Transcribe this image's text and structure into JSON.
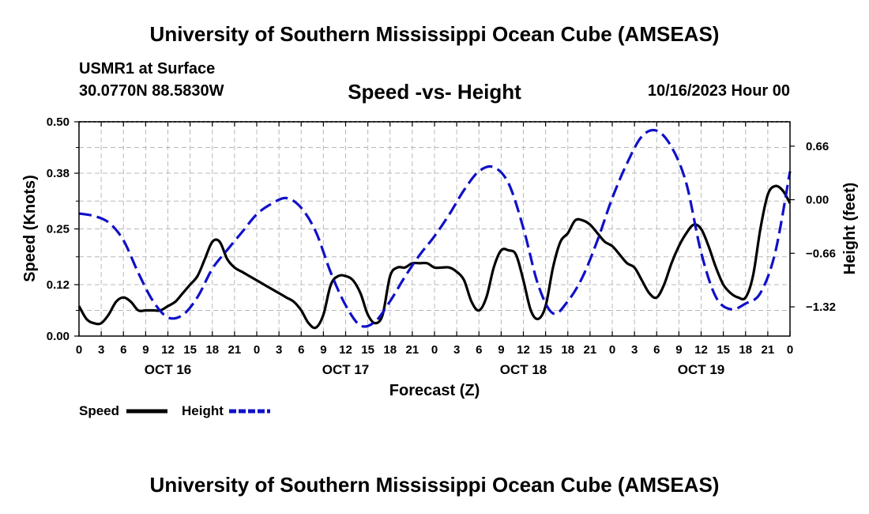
{
  "header": {
    "title": "University of Southern Mississippi Ocean Cube (AMSEAS)",
    "station": "USMR1 at Surface",
    "coords": "30.0770N  88.5830W",
    "chart_title": "Speed -vs- Height",
    "datetime": "10/16/2023 Hour 00"
  },
  "footer": {
    "title": "University of Southern Mississippi Ocean Cube (AMSEAS)"
  },
  "colors": {
    "speed": "#000000",
    "height": "#1010c8",
    "grid": "#b8b8b8"
  },
  "chart_data": {
    "type": "line",
    "title": "Speed -vs- Height",
    "xlabel": "Forecast (Z)",
    "ylabel": "Speed (Knots)",
    "y2label": "Height (feet)",
    "xlim": [
      0,
      96
    ],
    "ylim": [
      0,
      0.5
    ],
    "y2lim": [
      -1.68,
      0.96
    ],
    "x_ticks": [
      0,
      3,
      6,
      9,
      12,
      15,
      18,
      21,
      24,
      27,
      30,
      33,
      36,
      39,
      42,
      45,
      48,
      51,
      54,
      57,
      60,
      63,
      66,
      69,
      72,
      75,
      78,
      81,
      84,
      87,
      90,
      93,
      96
    ],
    "x_tick_labels": [
      "0",
      "3",
      "6",
      "9",
      "12",
      "15",
      "18",
      "21",
      "0",
      "3",
      "6",
      "9",
      "12",
      "15",
      "18",
      "21",
      "0",
      "3",
      "6",
      "9",
      "12",
      "15",
      "18",
      "21",
      "0",
      "3",
      "6",
      "9",
      "12",
      "15",
      "18",
      "21",
      "0"
    ],
    "date_labels": [
      {
        "x": 12,
        "label": "OCT 16"
      },
      {
        "x": 36,
        "label": "OCT 17"
      },
      {
        "x": 60,
        "label": "OCT 18"
      },
      {
        "x": 84,
        "label": "OCT 19"
      }
    ],
    "y_ticks": [
      0.0,
      0.12,
      0.25,
      0.38,
      0.5
    ],
    "y_tick_labels": [
      "0.00",
      "0.12",
      "0.25",
      "0.38",
      "0.50"
    ],
    "y2_ticks": [
      0.66,
      0.0,
      -0.66,
      -1.32
    ],
    "y2_tick_labels": [
      "0.66",
      "0.00",
      "−0.66",
      "−1.32"
    ],
    "legend": [
      "Speed",
      "Height"
    ],
    "series": [
      {
        "name": "Speed",
        "axis": "left",
        "style": "solid",
        "x": [
          0,
          1,
          2,
          3,
          4,
          5,
          6,
          7,
          8,
          9,
          10,
          11,
          12,
          13,
          14,
          15,
          16,
          17,
          18,
          19,
          20,
          21,
          22,
          23,
          24,
          25,
          26,
          27,
          28,
          29,
          30,
          31,
          32,
          33,
          34,
          35,
          36,
          37,
          38,
          39,
          40,
          41,
          42,
          43,
          44,
          45,
          46,
          47,
          48,
          49,
          50,
          51,
          52,
          53,
          54,
          55,
          56,
          57,
          58,
          59,
          60,
          61,
          62,
          63,
          64,
          65,
          66,
          67,
          68,
          69,
          70,
          71,
          72,
          73,
          74,
          75,
          76,
          77,
          78,
          79,
          80,
          81,
          82,
          83,
          84,
          85,
          86,
          87,
          88,
          89,
          90,
          91,
          92,
          93,
          94,
          95,
          96
        ],
        "values": [
          0.07,
          0.04,
          0.03,
          0.03,
          0.05,
          0.08,
          0.09,
          0.08,
          0.06,
          0.06,
          0.06,
          0.06,
          0.07,
          0.08,
          0.1,
          0.12,
          0.14,
          0.18,
          0.22,
          0.22,
          0.18,
          0.16,
          0.15,
          0.14,
          0.13,
          0.12,
          0.11,
          0.1,
          0.09,
          0.08,
          0.06,
          0.03,
          0.02,
          0.05,
          0.12,
          0.14,
          0.14,
          0.13,
          0.1,
          0.05,
          0.03,
          0.05,
          0.14,
          0.16,
          0.16,
          0.17,
          0.17,
          0.17,
          0.16,
          0.16,
          0.16,
          0.15,
          0.13,
          0.08,
          0.06,
          0.09,
          0.16,
          0.2,
          0.2,
          0.19,
          0.13,
          0.06,
          0.04,
          0.07,
          0.16,
          0.22,
          0.24,
          0.27,
          0.27,
          0.26,
          0.24,
          0.22,
          0.21,
          0.19,
          0.17,
          0.16,
          0.13,
          0.1,
          0.09,
          0.12,
          0.17,
          0.21,
          0.24,
          0.26,
          0.25,
          0.21,
          0.16,
          0.12,
          0.1,
          0.09,
          0.09,
          0.14,
          0.25,
          0.33,
          0.35,
          0.34,
          0.31
        ]
      },
      {
        "name": "Height",
        "axis": "right",
        "style": "dashed",
        "x": [
          0,
          2,
          4,
          6,
          8,
          10,
          12,
          14,
          16,
          18,
          20,
          22,
          24,
          26,
          28,
          30,
          32,
          34,
          36,
          38,
          40,
          42,
          44,
          46,
          48,
          50,
          52,
          54,
          56,
          58,
          60,
          62,
          64,
          66,
          68,
          70,
          72,
          74,
          76,
          78,
          80,
          82,
          84,
          86,
          88,
          90,
          92,
          94,
          96
        ],
        "values": [
          -0.17,
          -0.2,
          -0.28,
          -0.5,
          -0.9,
          -1.25,
          -1.45,
          -1.42,
          -1.2,
          -0.85,
          -0.62,
          -0.4,
          -0.18,
          -0.05,
          0.02,
          -0.1,
          -0.4,
          -0.9,
          -1.3,
          -1.55,
          -1.5,
          -1.25,
          -0.95,
          -0.68,
          -0.45,
          -0.18,
          0.12,
          0.35,
          0.4,
          0.2,
          -0.35,
          -1.05,
          -1.4,
          -1.25,
          -0.95,
          -0.5,
          0.02,
          0.45,
          0.78,
          0.85,
          0.65,
          0.2,
          -0.65,
          -1.2,
          -1.35,
          -1.28,
          -1.15,
          -0.65,
          0.35
        ]
      }
    ]
  }
}
